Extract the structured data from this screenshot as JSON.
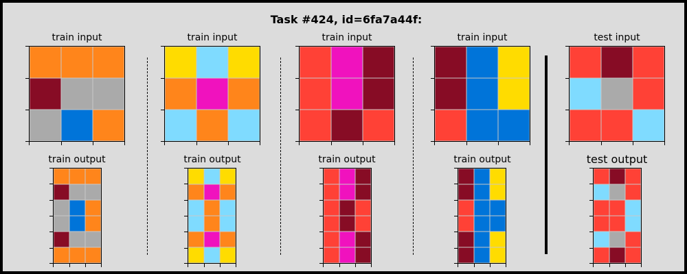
{
  "title": "Task #424, id=6fa7a44f:",
  "labels": {
    "train_input": "train input",
    "train_output": "train output",
    "test_input": "test input",
    "test_output": "test output"
  },
  "colors": {
    "0": "#000000",
    "1": "#0074D9",
    "2": "#FF4136",
    "3": "#2ECC40",
    "4": "#FFDC00",
    "5": "#AAAAAA",
    "6": "#F012BE",
    "7": "#FF851B",
    "8": "#7FDBFF",
    "9": "#870C25"
  },
  "pairs": [
    {
      "input": [
        [
          7,
          7,
          7
        ],
        [
          9,
          5,
          5
        ],
        [
          5,
          1,
          7
        ]
      ],
      "output": [
        [
          7,
          7,
          7
        ],
        [
          9,
          5,
          5
        ],
        [
          5,
          1,
          7
        ],
        [
          5,
          1,
          7
        ],
        [
          9,
          5,
          5
        ],
        [
          7,
          7,
          7
        ]
      ]
    },
    {
      "input": [
        [
          4,
          8,
          4
        ],
        [
          7,
          6,
          7
        ],
        [
          8,
          7,
          8
        ]
      ],
      "output": [
        [
          4,
          8,
          4
        ],
        [
          7,
          6,
          7
        ],
        [
          8,
          7,
          8
        ],
        [
          8,
          7,
          8
        ],
        [
          7,
          6,
          7
        ],
        [
          4,
          8,
          4
        ]
      ]
    },
    {
      "input": [
        [
          2,
          6,
          9
        ],
        [
          2,
          6,
          9
        ],
        [
          2,
          9,
          2
        ]
      ],
      "output": [
        [
          2,
          6,
          9
        ],
        [
          2,
          6,
          9
        ],
        [
          2,
          9,
          2
        ],
        [
          2,
          9,
          2
        ],
        [
          2,
          6,
          9
        ],
        [
          2,
          6,
          9
        ]
      ]
    },
    {
      "input": [
        [
          9,
          1,
          4
        ],
        [
          9,
          1,
          4
        ],
        [
          2,
          1,
          1
        ]
      ],
      "output": [
        [
          9,
          1,
          4
        ],
        [
          9,
          1,
          4
        ],
        [
          2,
          1,
          1
        ],
        [
          2,
          1,
          1
        ],
        [
          9,
          1,
          4
        ],
        [
          9,
          1,
          4
        ]
      ]
    }
  ],
  "test": {
    "input": [
      [
        2,
        9,
        2
      ],
      [
        8,
        5,
        2
      ],
      [
        2,
        2,
        8
      ]
    ],
    "output": [
      [
        2,
        9,
        2
      ],
      [
        8,
        5,
        2
      ],
      [
        2,
        2,
        8
      ],
      [
        2,
        2,
        8
      ],
      [
        8,
        5,
        2
      ],
      [
        2,
        9,
        2
      ]
    ]
  }
}
